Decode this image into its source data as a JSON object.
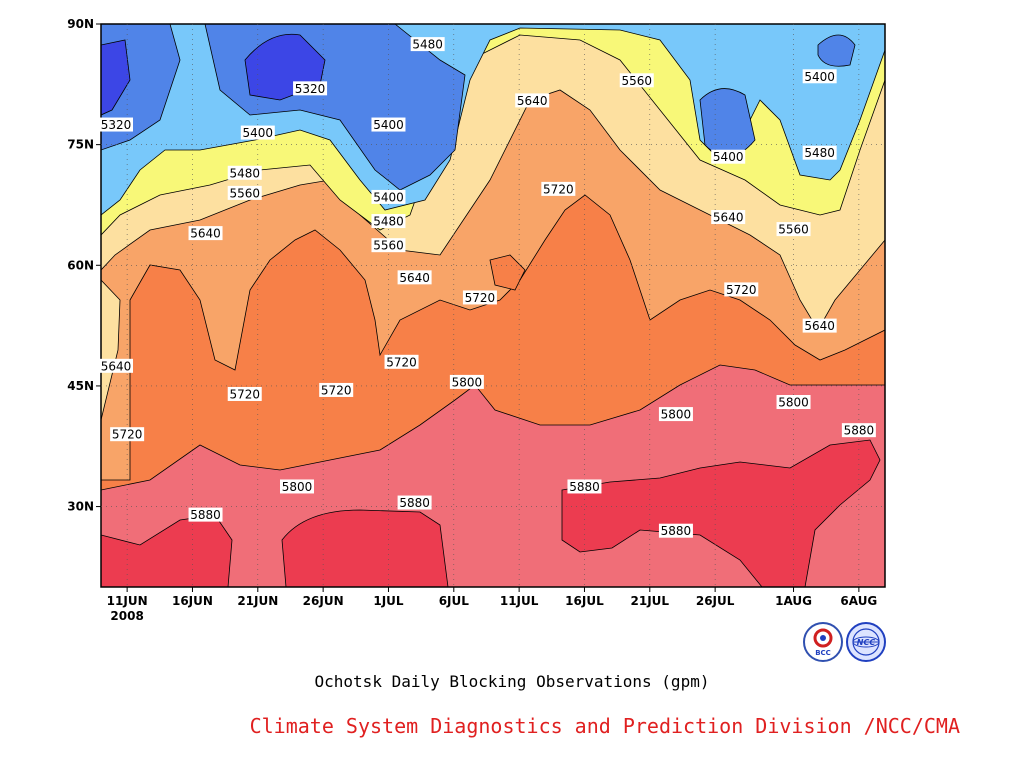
{
  "chart_data": {
    "type": "heatmap",
    "subtype": "filled-contour",
    "title": "Ochotsk Daily Blocking Observations (gpm)",
    "x_ticks": [
      "11JUN",
      "16JUN",
      "21JUN",
      "26JUN",
      "1JUL",
      "6JUL",
      "11JUL",
      "16JUL",
      "21JUL",
      "26JUL",
      "1AUG",
      "6AUG"
    ],
    "x_year_label": "2008",
    "x_range": [
      "2008-06-09",
      "2008-08-08"
    ],
    "y_ticks": [
      "30N",
      "45N",
      "60N",
      "75N",
      "90N"
    ],
    "y_range": [
      20,
      90
    ],
    "y_units": "latitude (degrees N)",
    "contour_levels": [
      5320,
      5400,
      5480,
      5560,
      5640,
      5720,
      5800,
      5880
    ],
    "level_colors": {
      "below_5320": "#3c46e6",
      "5320_5400": "#5084e8",
      "5400_5480": "#78c8fa",
      "5480_5560": "#f8f878",
      "5560_5640": "#fde0a0",
      "5640_5720": "#f8a468",
      "5720_5800": "#f78048",
      "5800_5880": "#f06e78",
      "above_5880": "#ec3c50"
    },
    "contour_labels": [
      {
        "text": "5480",
        "date": "2008-07-04",
        "lat": 87.5
      },
      {
        "text": "5320",
        "date": "2008-06-25",
        "lat": 82
      },
      {
        "text": "5320",
        "date": "2008-06-10",
        "lat": 77.5
      },
      {
        "text": "5400",
        "date": "2008-06-21",
        "lat": 76.5
      },
      {
        "text": "5400",
        "date": "2008-07-01",
        "lat": 77.5
      },
      {
        "text": "5480",
        "date": "2008-06-20",
        "lat": 71.5
      },
      {
        "text": "5560",
        "date": "2008-06-20",
        "lat": 69
      },
      {
        "text": "5640",
        "date": "2008-06-17",
        "lat": 64
      },
      {
        "text": "5400",
        "date": "2008-07-01",
        "lat": 68.5
      },
      {
        "text": "5480",
        "date": "2008-07-01",
        "lat": 65.5
      },
      {
        "text": "5560",
        "date": "2008-07-01",
        "lat": 62.5
      },
      {
        "text": "5640",
        "date": "2008-07-03",
        "lat": 58.5
      },
      {
        "text": "5640",
        "date": "2008-07-12",
        "lat": 80.5
      },
      {
        "text": "5560",
        "date": "2008-07-20",
        "lat": 83
      },
      {
        "text": "5720",
        "date": "2008-07-14",
        "lat": 69.5
      },
      {
        "text": "5720",
        "date": "2008-07-08",
        "lat": 56
      },
      {
        "text": "5400",
        "date": "2008-07-27",
        "lat": 73.5
      },
      {
        "text": "5400",
        "date": "2008-08-03",
        "lat": 83.5
      },
      {
        "text": "5480",
        "date": "2008-08-03",
        "lat": 74
      },
      {
        "text": "5640",
        "date": "2008-07-27",
        "lat": 66
      },
      {
        "text": "5560",
        "date": "2008-08-01",
        "lat": 64.5
      },
      {
        "text": "5720",
        "date": "2008-07-28",
        "lat": 57
      },
      {
        "text": "5640",
        "date": "2008-08-03",
        "lat": 52.5
      },
      {
        "text": "5640",
        "date": "2008-06-09",
        "lat": 47.5
      },
      {
        "text": "5720",
        "date": "2008-06-20",
        "lat": 44
      },
      {
        "text": "5720",
        "date": "2008-06-27",
        "lat": 44.5
      },
      {
        "text": "5720",
        "date": "2008-07-02",
        "lat": 48
      },
      {
        "text": "5800",
        "date": "2008-07-07",
        "lat": 45.5
      },
      {
        "text": "5720",
        "date": "2008-06-11",
        "lat": 39
      },
      {
        "text": "5800",
        "date": "2008-07-23",
        "lat": 41.5
      },
      {
        "text": "5800",
        "date": "2008-08-01",
        "lat": 43
      },
      {
        "text": "5880",
        "date": "2008-08-06",
        "lat": 39.5
      },
      {
        "text": "5800",
        "date": "2008-06-24",
        "lat": 32.5
      },
      {
        "text": "5880",
        "date": "2008-06-17",
        "lat": 29
      },
      {
        "text": "5880",
        "date": "2008-07-03",
        "lat": 30.5
      },
      {
        "text": "5880",
        "date": "2008-07-16",
        "lat": 32.5
      },
      {
        "text": "5880",
        "date": "2008-07-23",
        "lat": 27
      }
    ]
  },
  "caption": "Ochotsk Daily Blocking Observations (gpm)",
  "credit": "Climate System Diagnostics and Prediction Division /NCC/CMA",
  "logos": {
    "left": "BCC",
    "right": "NCC"
  }
}
